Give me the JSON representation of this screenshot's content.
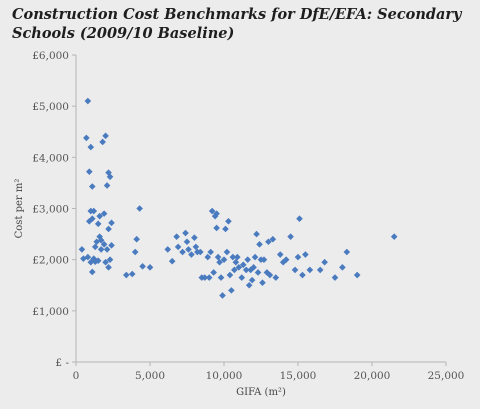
{
  "chart_data": {
    "type": "scatter",
    "title": "Construction Cost Benchmarks for DfE/EFA: Secondary Schools (2009/10 Baseline)",
    "xlabel": "GIFA (m²)",
    "ylabel": "Cost per m²",
    "xlim": [
      0,
      25000
    ],
    "ylim": [
      0,
      6000
    ],
    "x_ticks": [
      0,
      5000,
      10000,
      15000,
      20000,
      25000
    ],
    "x_tick_labels": [
      "0",
      "5,000",
      "10,000",
      "15,000",
      "20,000",
      "25,000"
    ],
    "y_ticks": [
      0,
      1000,
      2000,
      3000,
      4000,
      5000,
      6000
    ],
    "y_tick_labels": [
      "£ -",
      "£1,000",
      "£2,000",
      "£3,000",
      "£4,000",
      "£5,000",
      "£6,000"
    ],
    "grid": false,
    "legend": "none",
    "marker_color": "#4a7bbf",
    "points": [
      [
        400,
        2200
      ],
      [
        500,
        2020
      ],
      [
        700,
        4380
      ],
      [
        800,
        5100
      ],
      [
        900,
        3720
      ],
      [
        1000,
        4200
      ],
      [
        1100,
        3430
      ],
      [
        900,
        2750
      ],
      [
        1000,
        2950
      ],
      [
        1100,
        2800
      ],
      [
        1200,
        2950
      ],
      [
        1300,
        2250
      ],
      [
        800,
        2050
      ],
      [
        1000,
        1950
      ],
      [
        1100,
        1760
      ],
      [
        1200,
        2020
      ],
      [
        1300,
        1960
      ],
      [
        1400,
        2350
      ],
      [
        1500,
        2700
      ],
      [
        1600,
        2850
      ],
      [
        1500,
        1980
      ],
      [
        1600,
        2450
      ],
      [
        1700,
        2380
      ],
      [
        1700,
        2200
      ],
      [
        1800,
        4300
      ],
      [
        1900,
        2900
      ],
      [
        1900,
        2300
      ],
      [
        2000,
        4420
      ],
      [
        2000,
        1950
      ],
      [
        2100,
        3450
      ],
      [
        2100,
        2200
      ],
      [
        2200,
        3700
      ],
      [
        2200,
        2600
      ],
      [
        2300,
        3620
      ],
      [
        2300,
        2000
      ],
      [
        2400,
        2720
      ],
      [
        2400,
        2280
      ],
      [
        2200,
        1850
      ],
      [
        3400,
        1700
      ],
      [
        3800,
        1720
      ],
      [
        4000,
        2150
      ],
      [
        4100,
        2400
      ],
      [
        4300,
        3000
      ],
      [
        4500,
        1870
      ],
      [
        5000,
        1850
      ],
      [
        6200,
        2200
      ],
      [
        6500,
        1970
      ],
      [
        6800,
        2450
      ],
      [
        6900,
        2250
      ],
      [
        7200,
        2150
      ],
      [
        7400,
        2520
      ],
      [
        7500,
        2350
      ],
      [
        7600,
        2200
      ],
      [
        7800,
        2100
      ],
      [
        8000,
        2430
      ],
      [
        8100,
        2250
      ],
      [
        8200,
        2150
      ],
      [
        8400,
        2150
      ],
      [
        8500,
        1650
      ],
      [
        8700,
        1650
      ],
      [
        8900,
        2050
      ],
      [
        9000,
        1650
      ],
      [
        9100,
        2150
      ],
      [
        9200,
        2950
      ],
      [
        9300,
        1750
      ],
      [
        9400,
        2850
      ],
      [
        9500,
        2900
      ],
      [
        9500,
        2620
      ],
      [
        9600,
        2050
      ],
      [
        9700,
        1950
      ],
      [
        9800,
        1650
      ],
      [
        9900,
        1300
      ],
      [
        10000,
        2000
      ],
      [
        10100,
        2600
      ],
      [
        10200,
        2150
      ],
      [
        10300,
        2750
      ],
      [
        10400,
        1700
      ],
      [
        10500,
        1400
      ],
      [
        10600,
        2050
      ],
      [
        10700,
        1800
      ],
      [
        10800,
        1950
      ],
      [
        10900,
        2050
      ],
      [
        11000,
        1850
      ],
      [
        11200,
        1650
      ],
      [
        11300,
        1900
      ],
      [
        11500,
        1800
      ],
      [
        11600,
        2000
      ],
      [
        11700,
        1500
      ],
      [
        11800,
        1800
      ],
      [
        11900,
        1600
      ],
      [
        12000,
        1850
      ],
      [
        12100,
        2050
      ],
      [
        12200,
        2500
      ],
      [
        12300,
        1750
      ],
      [
        12400,
        2300
      ],
      [
        12500,
        2000
      ],
      [
        12600,
        1550
      ],
      [
        12700,
        2000
      ],
      [
        12900,
        1750
      ],
      [
        13000,
        2350
      ],
      [
        13100,
        1700
      ],
      [
        13300,
        2400
      ],
      [
        13500,
        1650
      ],
      [
        13800,
        2100
      ],
      [
        14000,
        1950
      ],
      [
        14200,
        2000
      ],
      [
        14500,
        2450
      ],
      [
        14800,
        1800
      ],
      [
        15000,
        2050
      ],
      [
        15100,
        2800
      ],
      [
        15300,
        1700
      ],
      [
        15500,
        2100
      ],
      [
        15800,
        1800
      ],
      [
        16500,
        1800
      ],
      [
        16800,
        1950
      ],
      [
        17500,
        1650
      ],
      [
        18000,
        1850
      ],
      [
        18300,
        2150
      ],
      [
        19000,
        1700
      ],
      [
        21500,
        2450
      ]
    ]
  }
}
